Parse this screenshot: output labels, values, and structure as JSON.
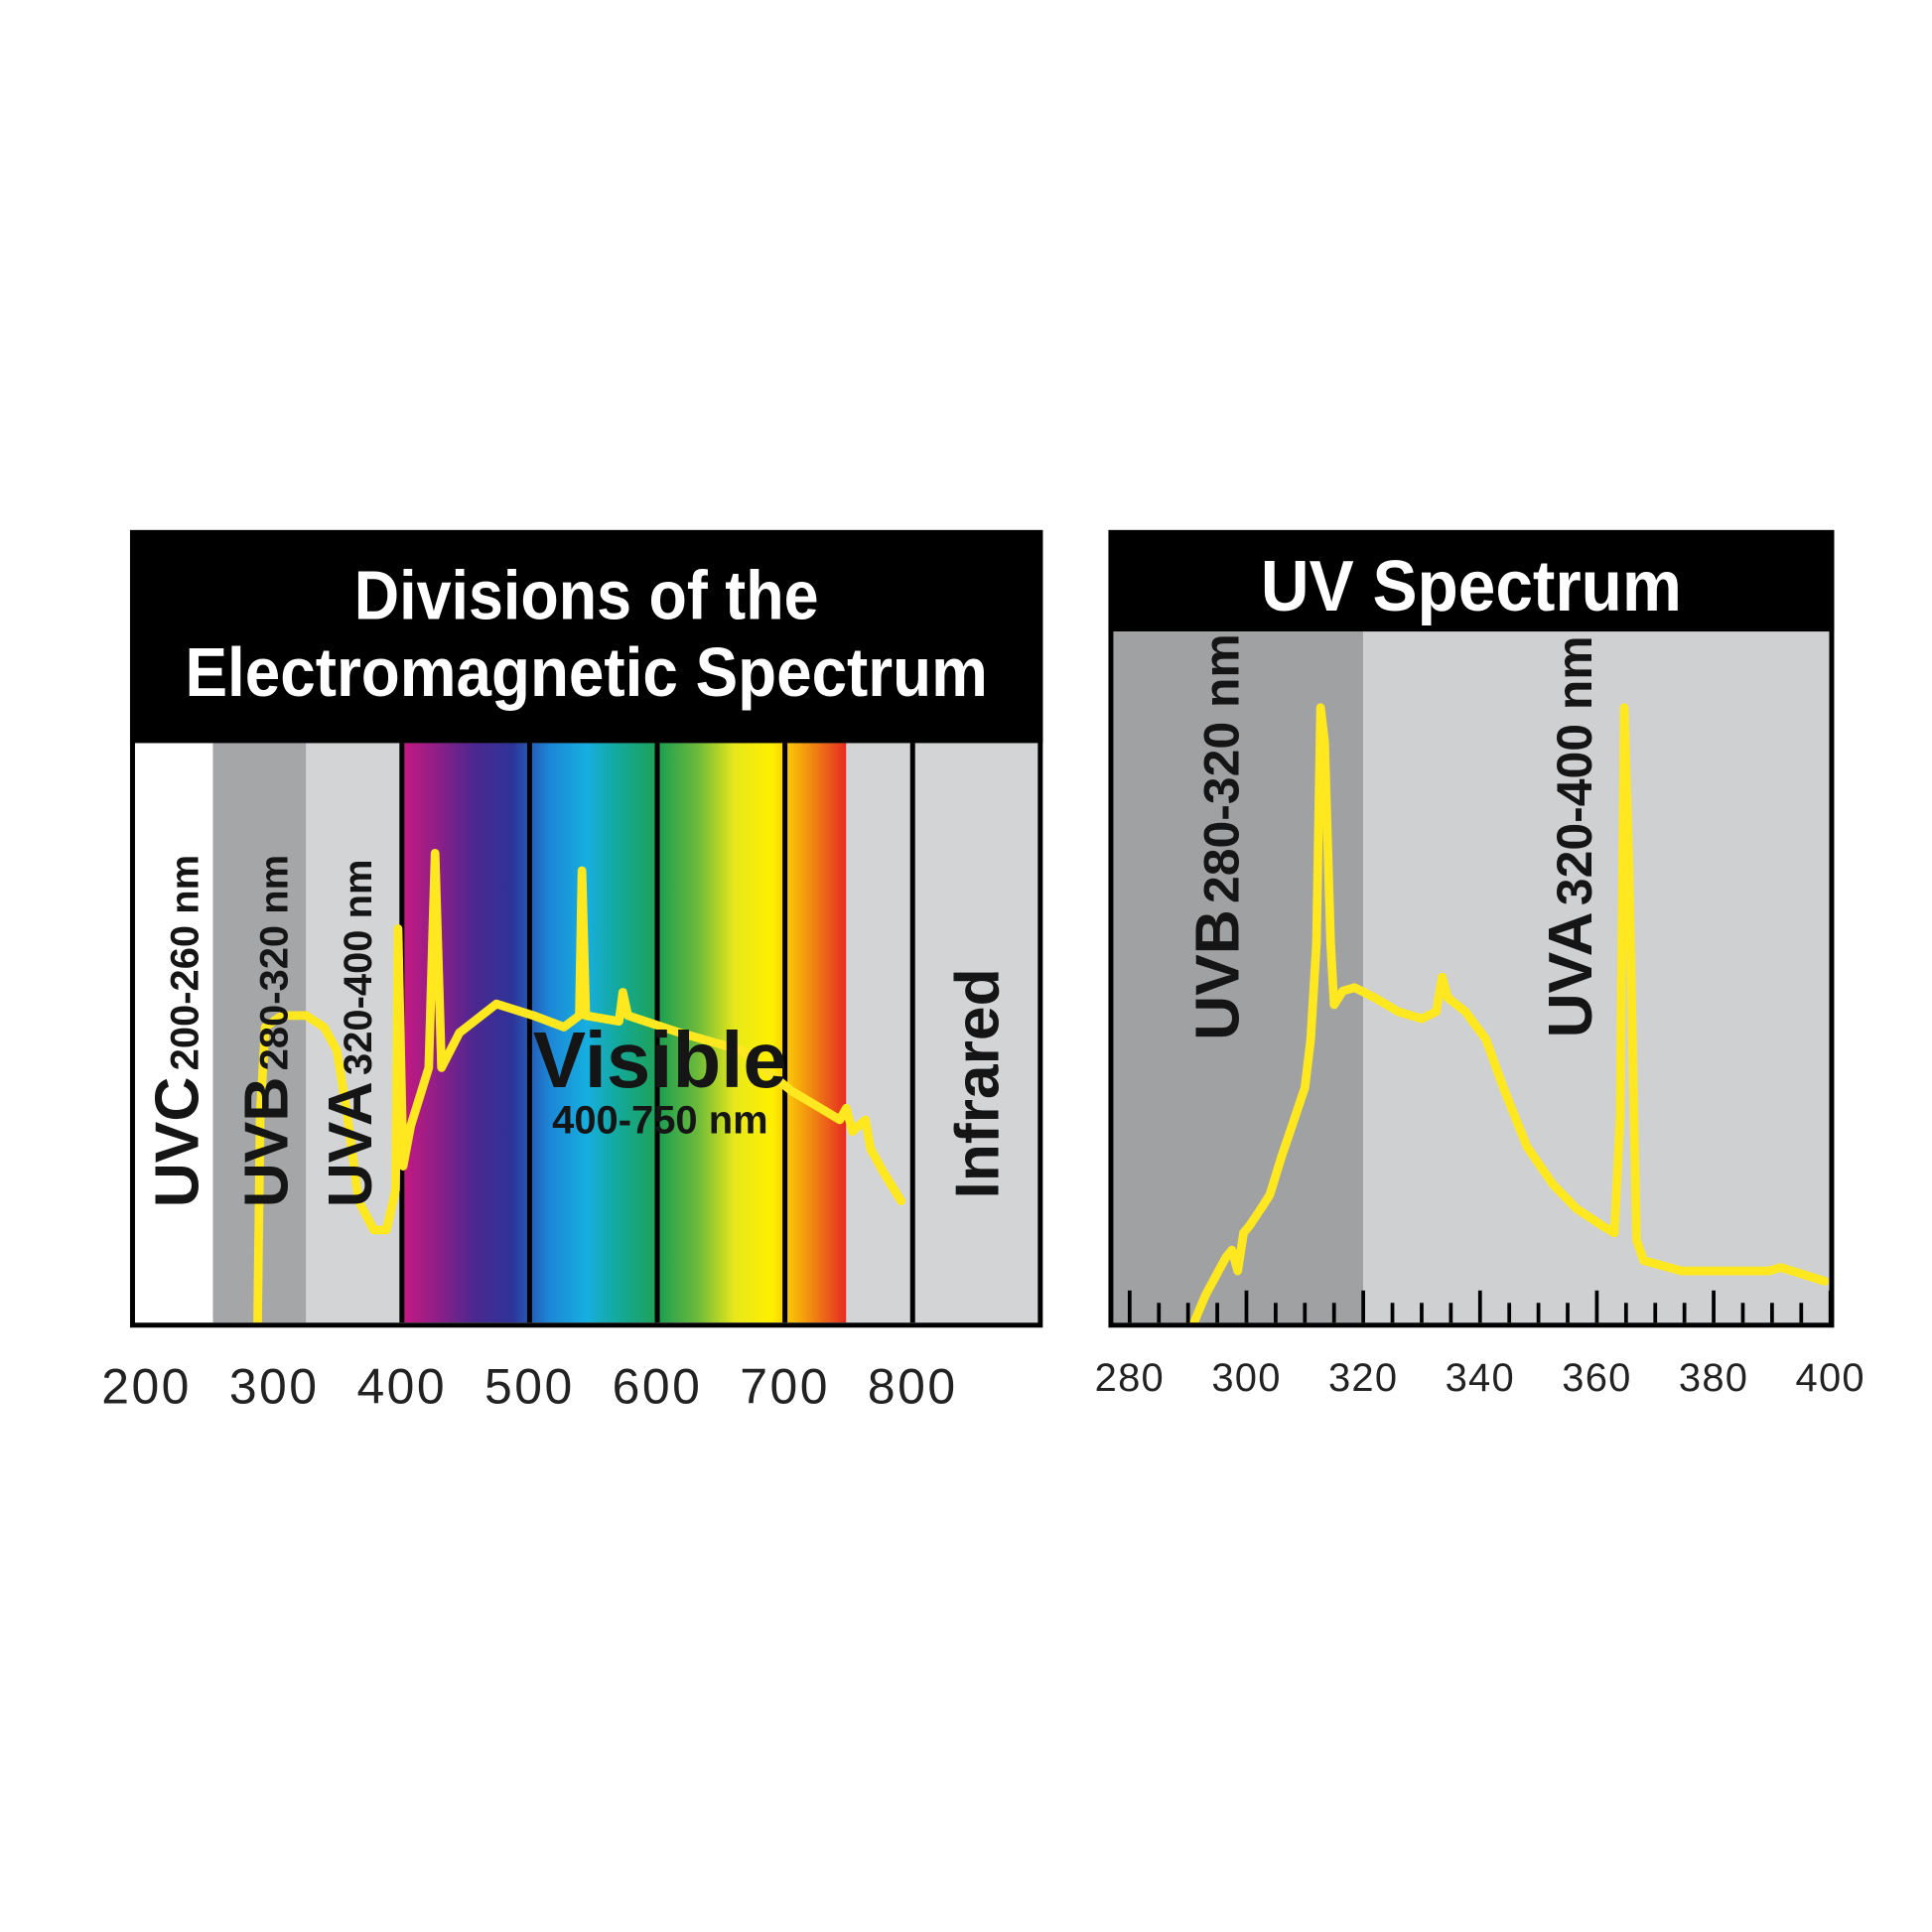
{
  "chart_data": [
    {
      "type": "line",
      "title": [
        "Divisions of the",
        "Electromagnetic Spectrum"
      ],
      "x": [
        287,
        289,
        293,
        306,
        325,
        339,
        349,
        357,
        366,
        378,
        388,
        395,
        397,
        401,
        407,
        421,
        426,
        431,
        445,
        474,
        503,
        527,
        539,
        541,
        544,
        570,
        573,
        577,
        618,
        666,
        705,
        743,
        748,
        753,
        763,
        767,
        777,
        791
      ],
      "values": [
        0,
        36,
        51,
        53,
        53,
        51,
        47,
        36,
        21,
        16,
        16,
        23,
        68,
        27,
        34,
        44,
        81,
        44,
        50,
        55,
        53,
        51,
        53,
        78,
        53,
        52,
        57,
        53,
        50,
        47,
        40,
        35,
        37,
        33,
        35,
        30,
        26,
        21
      ],
      "color": "#ffe81f",
      "xlim": [
        190,
        900
      ],
      "ylim": [
        0,
        100
      ],
      "xticks": [
        200,
        300,
        400,
        500,
        600,
        700,
        800
      ],
      "grid": true,
      "bands": [
        {
          "label": "UVC",
          "range": "200-260 nm",
          "start": 190,
          "end": 252,
          "color": "#ffffff"
        },
        {
          "label": "UVB",
          "range": "280-320 nm",
          "start": 252,
          "end": 325,
          "color": "#a5a6a8"
        },
        {
          "label": "UVA",
          "range": "320-400 nm",
          "start": 325,
          "end": 399,
          "color": "#d3d4d6"
        },
        {
          "label": "Visible",
          "range": "400-750 nm",
          "start": 399,
          "end": 748,
          "gradient": [
            "#c81880",
            "#8e1f88",
            "#4a2890",
            "#2e3398",
            "#1c86d6",
            "#16aee0",
            "#14a890",
            "#20a050",
            "#6cba3a",
            "#e8e81a",
            "#fff000",
            "#f29010",
            "#e52a22"
          ]
        },
        {
          "start": 748,
          "end": 799,
          "color": "#d3d4d6"
        },
        {
          "label": "Infrared",
          "start": 799,
          "end": 900,
          "color": "#d3d4d6"
        }
      ]
    },
    {
      "type": "line",
      "title": [
        "UV Spectrum"
      ],
      "x": [
        291,
        293,
        296.5,
        297.5,
        298.5,
        299.5,
        300.5,
        302.5,
        304,
        306,
        308,
        310,
        311,
        312,
        312.7,
        313.4,
        314.4,
        315,
        316.5,
        318.5,
        322,
        326,
        330,
        332.5,
        333.5,
        334.5,
        337.5,
        341,
        344,
        348,
        352.5,
        356.5,
        361,
        363,
        364,
        364.7,
        365.5,
        366.8,
        368,
        374.5,
        383,
        389.5,
        391.5,
        399
      ],
      "values": [
        0,
        4,
        9.5,
        10.5,
        7.5,
        13,
        14,
        16.5,
        18.5,
        24,
        29,
        34,
        41,
        55,
        89,
        84,
        55,
        46,
        48,
        48.5,
        47,
        45,
        44,
        45,
        50,
        47,
        45,
        41,
        34,
        25.5,
        20,
        16.5,
        14,
        13,
        30,
        89,
        66,
        12,
        9,
        7.5,
        7.5,
        7.5,
        8,
        6
      ],
      "color": "#ffe81f",
      "xlim": [
        277,
        400
      ],
      "ylim": [
        0,
        100
      ],
      "xticks": [
        280,
        300,
        320,
        340,
        360,
        380,
        400
      ],
      "xminorticks": [
        285,
        290,
        295,
        305,
        310,
        315,
        325,
        330,
        335,
        345,
        350,
        355,
        365,
        370,
        375,
        385,
        390,
        395
      ],
      "grid": false,
      "bands": [
        {
          "label": "UVB",
          "range": "280-320 nm",
          "start": 277,
          "end": 320,
          "color": "#a0a1a3"
        },
        {
          "label": "UVA",
          "range": "320-400 nm",
          "start": 320,
          "end": 400,
          "color": "#cfd0d2"
        }
      ]
    }
  ]
}
